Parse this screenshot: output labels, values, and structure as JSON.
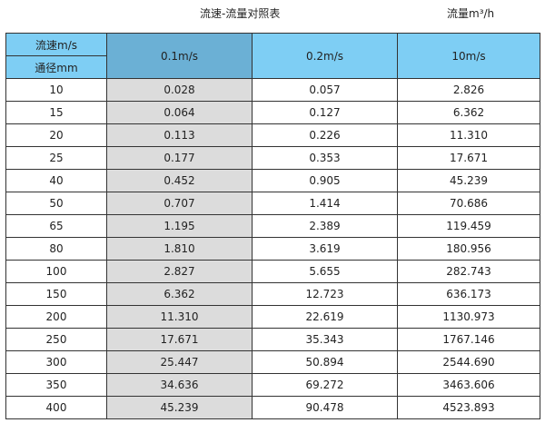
{
  "title": "流速-流量对照表",
  "unit_label": "流量m³/h",
  "header": {
    "velocity_label": "流速m/s",
    "diameter_label": "通径mm",
    "columns": [
      "0.1m/s",
      "0.2m/s",
      "10m/s"
    ]
  },
  "colors": {
    "header": "#7ECEF4",
    "header_highlight": "#6BB0D5",
    "highlight_column": "#DCDCDC"
  },
  "rows": [
    [
      "10",
      "0.028",
      "0.057",
      "2.826"
    ],
    [
      "15",
      "0.064",
      "0.127",
      "6.362"
    ],
    [
      "20",
      "0.113",
      "0.226",
      "11.310"
    ],
    [
      "25",
      "0.177",
      "0.353",
      "17.671"
    ],
    [
      "40",
      "0.452",
      "0.905",
      "45.239"
    ],
    [
      "50",
      "0.707",
      "1.414",
      "70.686"
    ],
    [
      "65",
      "1.195",
      "2.389",
      "119.459"
    ],
    [
      "80",
      "1.810",
      "3.619",
      "180.956"
    ],
    [
      "100",
      "2.827",
      "5.655",
      "282.743"
    ],
    [
      "150",
      "6.362",
      "12.723",
      "636.173"
    ],
    [
      "200",
      "11.310",
      "22.619",
      "1130.973"
    ],
    [
      "250",
      "17.671",
      "35.343",
      "1767.146"
    ],
    [
      "300",
      "25.447",
      "50.894",
      "2544.690"
    ],
    [
      "350",
      "34.636",
      "69.272",
      "3463.606"
    ],
    [
      "400",
      "45.239",
      "90.478",
      "4523.893"
    ]
  ]
}
